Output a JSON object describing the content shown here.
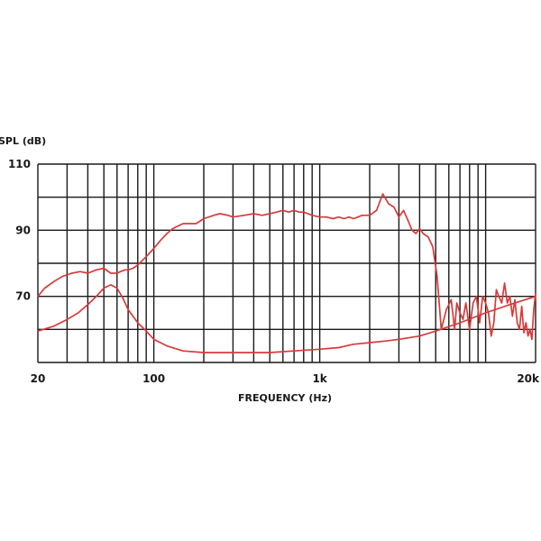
{
  "chart_data": {
    "type": "line",
    "title": "",
    "xlabel": "FREQUENCY (Hz)",
    "ylabel": "SPL (dB)",
    "x_scale": "log",
    "xlim": [
      20,
      20000
    ],
    "ylim": [
      50,
      110
    ],
    "grid": true,
    "x_tick_labels": [
      {
        "value": 20,
        "label": "20"
      },
      {
        "value": 100,
        "label": "100"
      },
      {
        "value": 1000,
        "label": "1k"
      },
      {
        "value": 20000,
        "label": "20k"
      }
    ],
    "y_tick_labels": [
      {
        "value": 110,
        "label": "110"
      },
      {
        "value": 90,
        "label": "90"
      },
      {
        "value": 70,
        "label": "70"
      }
    ],
    "colors": {
      "series": "#d93a3a",
      "grid": "#1a1a1a"
    },
    "series": [
      {
        "x": [
          20,
          22,
          25,
          28,
          32,
          36,
          40,
          45,
          50,
          55,
          60,
          63,
          67,
          70,
          75,
          80,
          90,
          100,
          110,
          120,
          130,
          150,
          180,
          200,
          230,
          250,
          280,
          300,
          350,
          400,
          450,
          500,
          550,
          600,
          650,
          700,
          750,
          800,
          900,
          1000,
          1100,
          1200,
          1300,
          1400,
          1500,
          1600,
          1700,
          1800,
          2000,
          2200,
          2400,
          2600,
          2800,
          3000,
          3200,
          3400,
          3600,
          3800,
          4000,
          4200,
          4500,
          4800,
          5100,
          5400,
          5800,
          6200,
          6500,
          6700,
          7000,
          7300,
          7600,
          8000,
          8400,
          8800,
          9200,
          9600,
          10000,
          10400,
          10800,
          11200,
          11600,
          12000,
          12500,
          13000,
          13500,
          14000,
          14500,
          15000,
          15500,
          16000,
          16500,
          17000,
          17500,
          18000,
          18500,
          19000,
          19500,
          20000
        ],
        "y": [
          70,
          72.5,
          74.5,
          76,
          77,
          77.5,
          77,
          78,
          78.5,
          77,
          77,
          77.5,
          78,
          78,
          78.5,
          79.5,
          82,
          84.5,
          87,
          89,
          90.5,
          92,
          92,
          93.5,
          94.5,
          95,
          94.5,
          94,
          94.5,
          95,
          94.5,
          95,
          95.5,
          96,
          95.5,
          96,
          95.5,
          95.5,
          94.5,
          94,
          94,
          93.5,
          94,
          93.5,
          94,
          93.5,
          94,
          94.5,
          94.5,
          96,
          101,
          98,
          97,
          94,
          96,
          93,
          90,
          89,
          90.5,
          89,
          88,
          85,
          76,
          60,
          66,
          69,
          60,
          68,
          65,
          63,
          68,
          60,
          68,
          70,
          62,
          70,
          68,
          65,
          58,
          62,
          72,
          70,
          68,
          74,
          68,
          70,
          64,
          69,
          62,
          60,
          67,
          59,
          62,
          58,
          60,
          57,
          66,
          71
        ]
      },
      {
        "x": [
          20,
          25,
          30,
          35,
          40,
          45,
          50,
          55,
          60,
          65,
          70,
          80,
          90,
          100,
          120,
          150,
          200,
          300,
          500,
          700,
          1000,
          1300,
          1600,
          2000,
          2500,
          3000,
          4000,
          5000,
          7000,
          10000,
          14000,
          20000
        ],
        "y": [
          59.5,
          61,
          63,
          65,
          67.5,
          70,
          72.5,
          73.5,
          72.5,
          69.5,
          66,
          62,
          59.5,
          57,
          55,
          53.5,
          53,
          53,
          53,
          53.5,
          54,
          54.5,
          55.5,
          56,
          56.5,
          57,
          58,
          59.5,
          62,
          65,
          67.5,
          70
        ]
      }
    ]
  }
}
